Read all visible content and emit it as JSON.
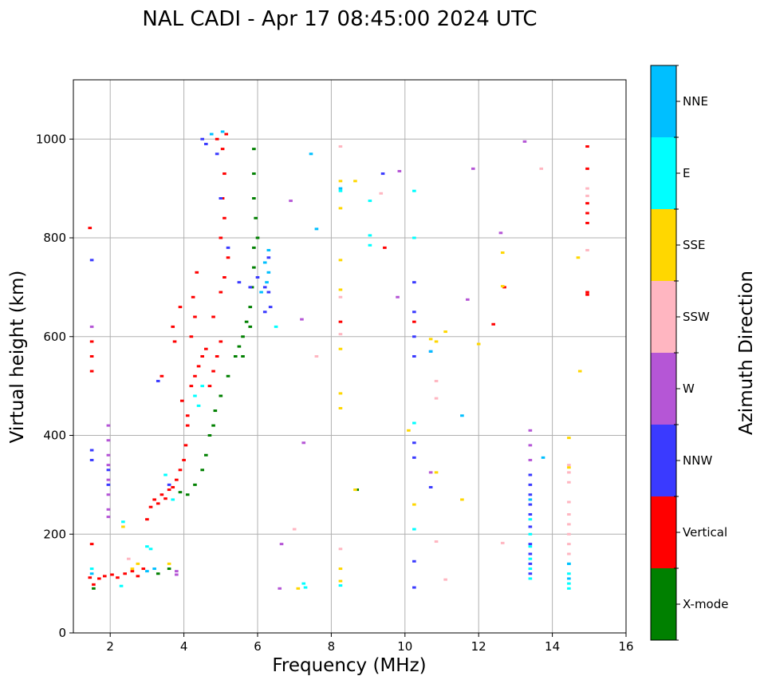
{
  "chart_data": {
    "type": "scatter",
    "title": "NAL CADI - Apr 17 08:45:00 2024 UTC",
    "xlabel": "Frequency (MHz)",
    "ylabel": "Virtual height (km)",
    "xlim": [
      1,
      16
    ],
    "ylim": [
      0,
      1120
    ],
    "xticks": [
      2,
      4,
      6,
      8,
      10,
      12,
      14,
      16
    ],
    "yticks": [
      0,
      200,
      400,
      600,
      800,
      1000
    ],
    "xtick_labels": [
      "2",
      "4",
      "6",
      "8",
      "10",
      "12",
      "14",
      "16"
    ],
    "ytick_labels": [
      "0",
      "200",
      "400",
      "600",
      "800",
      "1000"
    ],
    "grid": true,
    "colorbar": {
      "label": "Azimuth Direction",
      "categories": [
        {
          "name": "X-mode",
          "color": "#008000"
        },
        {
          "name": "Vertical",
          "color": "#ff0000"
        },
        {
          "name": "NNW",
          "color": "#3a3aff"
        },
        {
          "name": "W",
          "color": "#b556d6"
        },
        {
          "name": "SSW",
          "color": "#ffb6c1"
        },
        {
          "name": "SSE",
          "color": "#ffd700"
        },
        {
          "name": "E",
          "color": "#00ffff"
        },
        {
          "name": "NNE",
          "color": "#00bfff"
        }
      ]
    },
    "traces": [
      {
        "dir": "Vertical",
        "points": [
          [
            1.45,
            112
          ],
          [
            1.55,
            98
          ],
          [
            1.7,
            110
          ],
          [
            1.85,
            115
          ],
          [
            2.05,
            118
          ],
          [
            2.2,
            112
          ],
          [
            2.4,
            120
          ],
          [
            2.6,
            125
          ],
          [
            2.75,
            115
          ],
          [
            2.9,
            130
          ],
          [
            3.0,
            230
          ],
          [
            3.1,
            255
          ],
          [
            3.2,
            270
          ],
          [
            3.3,
            262
          ],
          [
            3.4,
            280
          ],
          [
            3.5,
            272
          ],
          [
            3.6,
            290
          ],
          [
            3.7,
            295
          ],
          [
            3.8,
            310
          ],
          [
            3.9,
            330
          ],
          [
            4.0,
            350
          ],
          [
            4.05,
            380
          ],
          [
            4.1,
            420
          ],
          [
            4.1,
            440
          ],
          [
            3.95,
            470
          ],
          [
            4.2,
            500
          ],
          [
            4.3,
            520
          ],
          [
            4.4,
            540
          ],
          [
            4.5,
            560
          ],
          [
            4.6,
            575
          ],
          [
            4.2,
            600
          ],
          [
            4.3,
            640
          ],
          [
            4.25,
            680
          ],
          [
            4.35,
            730
          ],
          [
            4.7,
            500
          ],
          [
            4.8,
            530
          ],
          [
            4.9,
            560
          ],
          [
            5.0,
            590
          ],
          [
            4.8,
            640
          ],
          [
            5.0,
            690
          ],
          [
            5.1,
            720
          ],
          [
            5.2,
            760
          ],
          [
            5.0,
            800
          ],
          [
            5.1,
            840
          ],
          [
            5.05,
            880
          ],
          [
            5.1,
            930
          ],
          [
            5.05,
            980
          ],
          [
            5.15,
            1010
          ],
          [
            4.9,
            1000
          ],
          [
            3.75,
            590
          ],
          [
            3.7,
            620
          ],
          [
            3.9,
            660
          ],
          [
            3.4,
            520
          ],
          [
            1.5,
            560
          ],
          [
            1.5,
            590
          ],
          [
            1.5,
            530
          ],
          [
            1.45,
            820
          ],
          [
            1.5,
            180
          ],
          [
            8.25,
            630
          ],
          [
            10.25,
            630
          ],
          [
            12.7,
            700
          ],
          [
            12.4,
            625
          ],
          [
            14.95,
            830
          ],
          [
            14.95,
            850
          ],
          [
            14.95,
            870
          ],
          [
            14.95,
            940
          ],
          [
            14.95,
            985
          ],
          [
            14.95,
            690
          ],
          [
            14.95,
            685
          ],
          [
            9.45,
            780
          ]
        ]
      },
      {
        "dir": "X-mode",
        "points": [
          [
            1.55,
            90
          ],
          [
            3.3,
            120
          ],
          [
            3.6,
            130
          ],
          [
            3.9,
            285
          ],
          [
            4.1,
            280
          ],
          [
            4.3,
            300
          ],
          [
            4.5,
            330
          ],
          [
            4.6,
            360
          ],
          [
            4.7,
            400
          ],
          [
            4.8,
            420
          ],
          [
            4.85,
            450
          ],
          [
            5.0,
            480
          ],
          [
            5.2,
            520
          ],
          [
            5.4,
            560
          ],
          [
            5.5,
            580
          ],
          [
            5.6,
            600
          ],
          [
            5.7,
            630
          ],
          [
            5.8,
            660
          ],
          [
            5.85,
            700
          ],
          [
            5.9,
            740
          ],
          [
            5.9,
            780
          ],
          [
            6.0,
            800
          ],
          [
            5.95,
            840
          ],
          [
            5.9,
            880
          ],
          [
            5.9,
            930
          ],
          [
            5.9,
            980
          ],
          [
            5.8,
            620
          ],
          [
            5.6,
            560
          ],
          [
            8.7,
            290
          ]
        ]
      },
      {
        "dir": "NNW",
        "points": [
          [
            1.5,
            370
          ],
          [
            1.5,
            350
          ],
          [
            1.95,
            300
          ],
          [
            1.95,
            330
          ],
          [
            3.3,
            510
          ],
          [
            3.6,
            300
          ],
          [
            4.5,
            1000
          ],
          [
            4.6,
            990
          ],
          [
            4.9,
            970
          ],
          [
            5.0,
            880
          ],
          [
            5.2,
            780
          ],
          [
            5.5,
            710
          ],
          [
            5.8,
            700
          ],
          [
            6.0,
            720
          ],
          [
            6.2,
            700
          ],
          [
            6.3,
            760
          ],
          [
            6.3,
            690
          ],
          [
            6.35,
            660
          ],
          [
            6.2,
            650
          ],
          [
            9.4,
            930
          ],
          [
            10.25,
            710
          ],
          [
            10.25,
            650
          ],
          [
            10.25,
            600
          ],
          [
            10.25,
            560
          ],
          [
            10.25,
            385
          ],
          [
            10.25,
            355
          ],
          [
            10.25,
            145
          ],
          [
            10.25,
            92
          ],
          [
            10.7,
            295
          ],
          [
            10.7,
            570
          ],
          [
            13.4,
            320
          ],
          [
            13.4,
            300
          ],
          [
            13.4,
            280
          ],
          [
            13.4,
            260
          ],
          [
            13.4,
            240
          ],
          [
            13.4,
            215
          ],
          [
            13.4,
            180
          ],
          [
            13.4,
            160
          ],
          [
            13.4,
            140
          ],
          [
            13.4,
            120
          ],
          [
            1.5,
            755
          ]
        ]
      },
      {
        "dir": "W",
        "points": [
          [
            1.95,
            420
          ],
          [
            1.95,
            390
          ],
          [
            1.95,
            360
          ],
          [
            1.95,
            340
          ],
          [
            1.95,
            310
          ],
          [
            1.95,
            280
          ],
          [
            1.95,
            250
          ],
          [
            1.95,
            235
          ],
          [
            3.8,
            118
          ],
          [
            3.8,
            125
          ],
          [
            6.65,
            180
          ],
          [
            6.6,
            90
          ],
          [
            6.9,
            875
          ],
          [
            7.2,
            635
          ],
          [
            7.25,
            385
          ],
          [
            9.85,
            935
          ],
          [
            9.8,
            680
          ],
          [
            11.85,
            940
          ],
          [
            11.7,
            675
          ],
          [
            13.25,
            995
          ],
          [
            12.6,
            810
          ],
          [
            13.4,
            410
          ],
          [
            13.4,
            380
          ],
          [
            13.4,
            350
          ],
          [
            10.7,
            325
          ],
          [
            1.5,
            620
          ]
        ]
      },
      {
        "dir": "SSW",
        "points": [
          [
            2.5,
            150
          ],
          [
            7.0,
            210
          ],
          [
            7.6,
            560
          ],
          [
            8.25,
            985
          ],
          [
            8.25,
            680
          ],
          [
            8.25,
            605
          ],
          [
            8.25,
            170
          ],
          [
            9.35,
            890
          ],
          [
            10.85,
            510
          ],
          [
            10.85,
            475
          ],
          [
            10.85,
            185
          ],
          [
            11.1,
            108
          ],
          [
            12.65,
            182
          ],
          [
            13.7,
            940
          ],
          [
            14.45,
            265
          ],
          [
            14.45,
            240
          ],
          [
            14.45,
            220
          ],
          [
            14.45,
            200
          ],
          [
            14.45,
            180
          ],
          [
            14.45,
            160
          ],
          [
            14.45,
            340
          ],
          [
            14.45,
            325
          ],
          [
            14.45,
            305
          ],
          [
            14.95,
            900
          ],
          [
            14.95,
            885
          ],
          [
            14.95,
            775
          ]
        ]
      },
      {
        "dir": "SSE",
        "points": [
          [
            2.35,
            215
          ],
          [
            2.6,
            130
          ],
          [
            2.75,
            140
          ],
          [
            3.6,
            140
          ],
          [
            7.1,
            90
          ],
          [
            8.25,
            915
          ],
          [
            8.25,
            860
          ],
          [
            8.25,
            755
          ],
          [
            8.25,
            695
          ],
          [
            8.25,
            575
          ],
          [
            8.25,
            485
          ],
          [
            8.25,
            455
          ],
          [
            8.25,
            130
          ],
          [
            8.25,
            105
          ],
          [
            8.65,
            915
          ],
          [
            8.65,
            290
          ],
          [
            10.1,
            410
          ],
          [
            10.25,
            260
          ],
          [
            10.7,
            595
          ],
          [
            10.85,
            590
          ],
          [
            10.85,
            325
          ],
          [
            11.1,
            610
          ],
          [
            11.55,
            270
          ],
          [
            12.0,
            585
          ],
          [
            12.65,
            770
          ],
          [
            12.65,
            702
          ],
          [
            14.45,
            395
          ],
          [
            14.45,
            335
          ],
          [
            14.75,
            530
          ],
          [
            14.7,
            760
          ]
        ]
      },
      {
        "dir": "E",
        "points": [
          [
            1.5,
            130
          ],
          [
            2.3,
            95
          ],
          [
            2.35,
            225
          ],
          [
            3.0,
            175
          ],
          [
            3.1,
            170
          ],
          [
            3.5,
            320
          ],
          [
            3.7,
            270
          ],
          [
            4.3,
            480
          ],
          [
            4.4,
            460
          ],
          [
            4.5,
            500
          ],
          [
            6.5,
            620
          ],
          [
            7.25,
            100
          ],
          [
            7.3,
            92
          ],
          [
            8.25,
            895
          ],
          [
            8.25,
            96
          ],
          [
            9.05,
            875
          ],
          [
            9.05,
            805
          ],
          [
            9.05,
            785
          ],
          [
            10.25,
            895
          ],
          [
            10.25,
            800
          ],
          [
            10.25,
            425
          ],
          [
            10.25,
            210
          ],
          [
            13.4,
            230
          ],
          [
            13.4,
            200
          ],
          [
            13.4,
            175
          ],
          [
            13.4,
            150
          ],
          [
            13.4,
            130
          ],
          [
            13.4,
            110
          ],
          [
            14.45,
            140
          ],
          [
            14.45,
            120
          ],
          [
            14.45,
            100
          ],
          [
            14.45,
            90
          ]
        ]
      },
      {
        "dir": "NNE",
        "points": [
          [
            1.5,
            120
          ],
          [
            3.0,
            125
          ],
          [
            3.2,
            130
          ],
          [
            4.75,
            1010
          ],
          [
            5.05,
            1015
          ],
          [
            6.3,
            775
          ],
          [
            6.2,
            750
          ],
          [
            6.3,
            730
          ],
          [
            6.25,
            710
          ],
          [
            6.1,
            690
          ],
          [
            7.6,
            818
          ],
          [
            7.45,
            970
          ],
          [
            8.25,
            900
          ],
          [
            10.7,
            570
          ],
          [
            11.55,
            440
          ],
          [
            13.75,
            355
          ],
          [
            13.4,
            270
          ],
          [
            14.45,
            140
          ],
          [
            14.45,
            110
          ]
        ]
      }
    ]
  }
}
